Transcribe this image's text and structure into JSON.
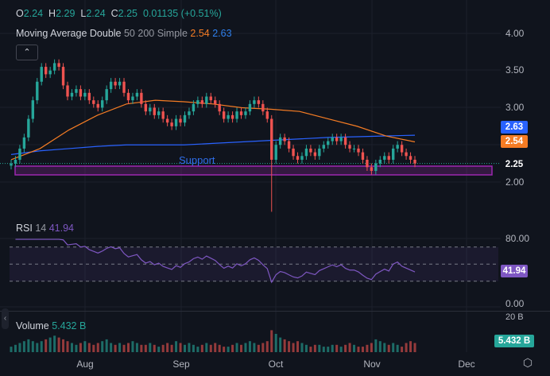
{
  "ohlc_legend": {
    "o_label": "O",
    "o": "2.24",
    "h_label": "H",
    "h": "2.29",
    "l_label": "L",
    "l": "2.24",
    "c_label": "C",
    "c": "2.25",
    "change": "0.01135 (+0.51%)"
  },
  "ma_legend": {
    "name": "Moving Average Double",
    "params": "50 200 Simple",
    "ma50": "2.54",
    "ma200": "2.63"
  },
  "colors": {
    "up": "#26a69a",
    "down": "#ef5350",
    "ma50": "#f57c24",
    "ma200": "#2962ff",
    "rsi": "#7e57c2",
    "support": "#9c27b0",
    "background": "#10141d"
  },
  "price_axis": [
    "4.00",
    "3.50",
    "3.00",
    "2.50",
    "2.00"
  ],
  "price_tags": {
    "ma200": "2.63",
    "ma50": "2.54",
    "last": "2.25"
  },
  "support_label": "Support",
  "rsi": {
    "name": "RSI",
    "period": "14",
    "value": "41.94",
    "axis": [
      "80.00",
      "0.00"
    ],
    "tag": "41.94"
  },
  "volume": {
    "name": "Volume",
    "value": "5.432 B",
    "axis_top": "20 B",
    "tag": "5.432 B"
  },
  "months": [
    "Aug",
    "Sep",
    "Oct",
    "Nov",
    "Dec"
  ],
  "chart_data": {
    "type": "candlestick",
    "closes": [
      2.25,
      2.3,
      2.45,
      2.6,
      2.85,
      3.1,
      3.35,
      3.55,
      3.45,
      3.5,
      3.6,
      3.55,
      3.3,
      3.15,
      3.2,
      3.25,
      3.15,
      3.2,
      3.1,
      3.05,
      3.0,
      3.1,
      3.25,
      3.35,
      3.3,
      3.35,
      3.2,
      3.1,
      3.15,
      3.2,
      3.05,
      2.95,
      3.0,
      2.9,
      2.95,
      2.85,
      2.8,
      2.75,
      2.85,
      2.8,
      2.9,
      2.95,
      3.05,
      3.1,
      3.05,
      3.15,
      3.1,
      3.05,
      2.95,
      2.85,
      2.9,
      2.85,
      2.95,
      2.9,
      2.95,
      3.05,
      3.1,
      3.05,
      2.95,
      2.85,
      2.3,
      2.5,
      2.6,
      2.55,
      2.45,
      2.35,
      2.3,
      2.35,
      2.45,
      2.4,
      2.35,
      2.45,
      2.5,
      2.55,
      2.6,
      2.55,
      2.6,
      2.5,
      2.45,
      2.45,
      2.4,
      2.3,
      2.2,
      2.15,
      2.25,
      2.3,
      2.35,
      2.3,
      2.45,
      2.5,
      2.4,
      2.35,
      2.3,
      2.25
    ],
    "spike_low": {
      "index": 60,
      "low": 1.6
    },
    "ma50": [
      2.3,
      2.45,
      2.7,
      2.9,
      3.05,
      3.1,
      3.08,
      3.05,
      3.0,
      2.98,
      2.95,
      2.85,
      2.75,
      2.62,
      2.54
    ],
    "ma200": [
      2.37,
      2.42,
      2.45,
      2.48,
      2.5,
      2.5,
      2.5,
      2.52,
      2.54,
      2.56,
      2.58,
      2.6,
      2.61,
      2.62,
      2.63
    ],
    "volumes": [
      3,
      4,
      5,
      6,
      7,
      6,
      5,
      6,
      7,
      8,
      9,
      8,
      7,
      6,
      5,
      4,
      5,
      6,
      5,
      4,
      5,
      6,
      7,
      5,
      4,
      5,
      4,
      5,
      6,
      5,
      4,
      4,
      5,
      4,
      3,
      4,
      5,
      4,
      6,
      5,
      4,
      5,
      4,
      3,
      4,
      5,
      4,
      5,
      4,
      3,
      3,
      4,
      5,
      4,
      5,
      6,
      5,
      4,
      5,
      6,
      12,
      10,
      8,
      7,
      6,
      5,
      6,
      5,
      4,
      3,
      4,
      4,
      3,
      3,
      4,
      4,
      3,
      4,
      5,
      4,
      3,
      3,
      4,
      5,
      7,
      6,
      5,
      4,
      5,
      4,
      3,
      5,
      6,
      5
    ],
    "ylim": [
      1.55,
      4.1
    ],
    "rsi_levels": [
      70,
      50,
      30
    ],
    "rsi_range": [
      0,
      80
    ]
  }
}
